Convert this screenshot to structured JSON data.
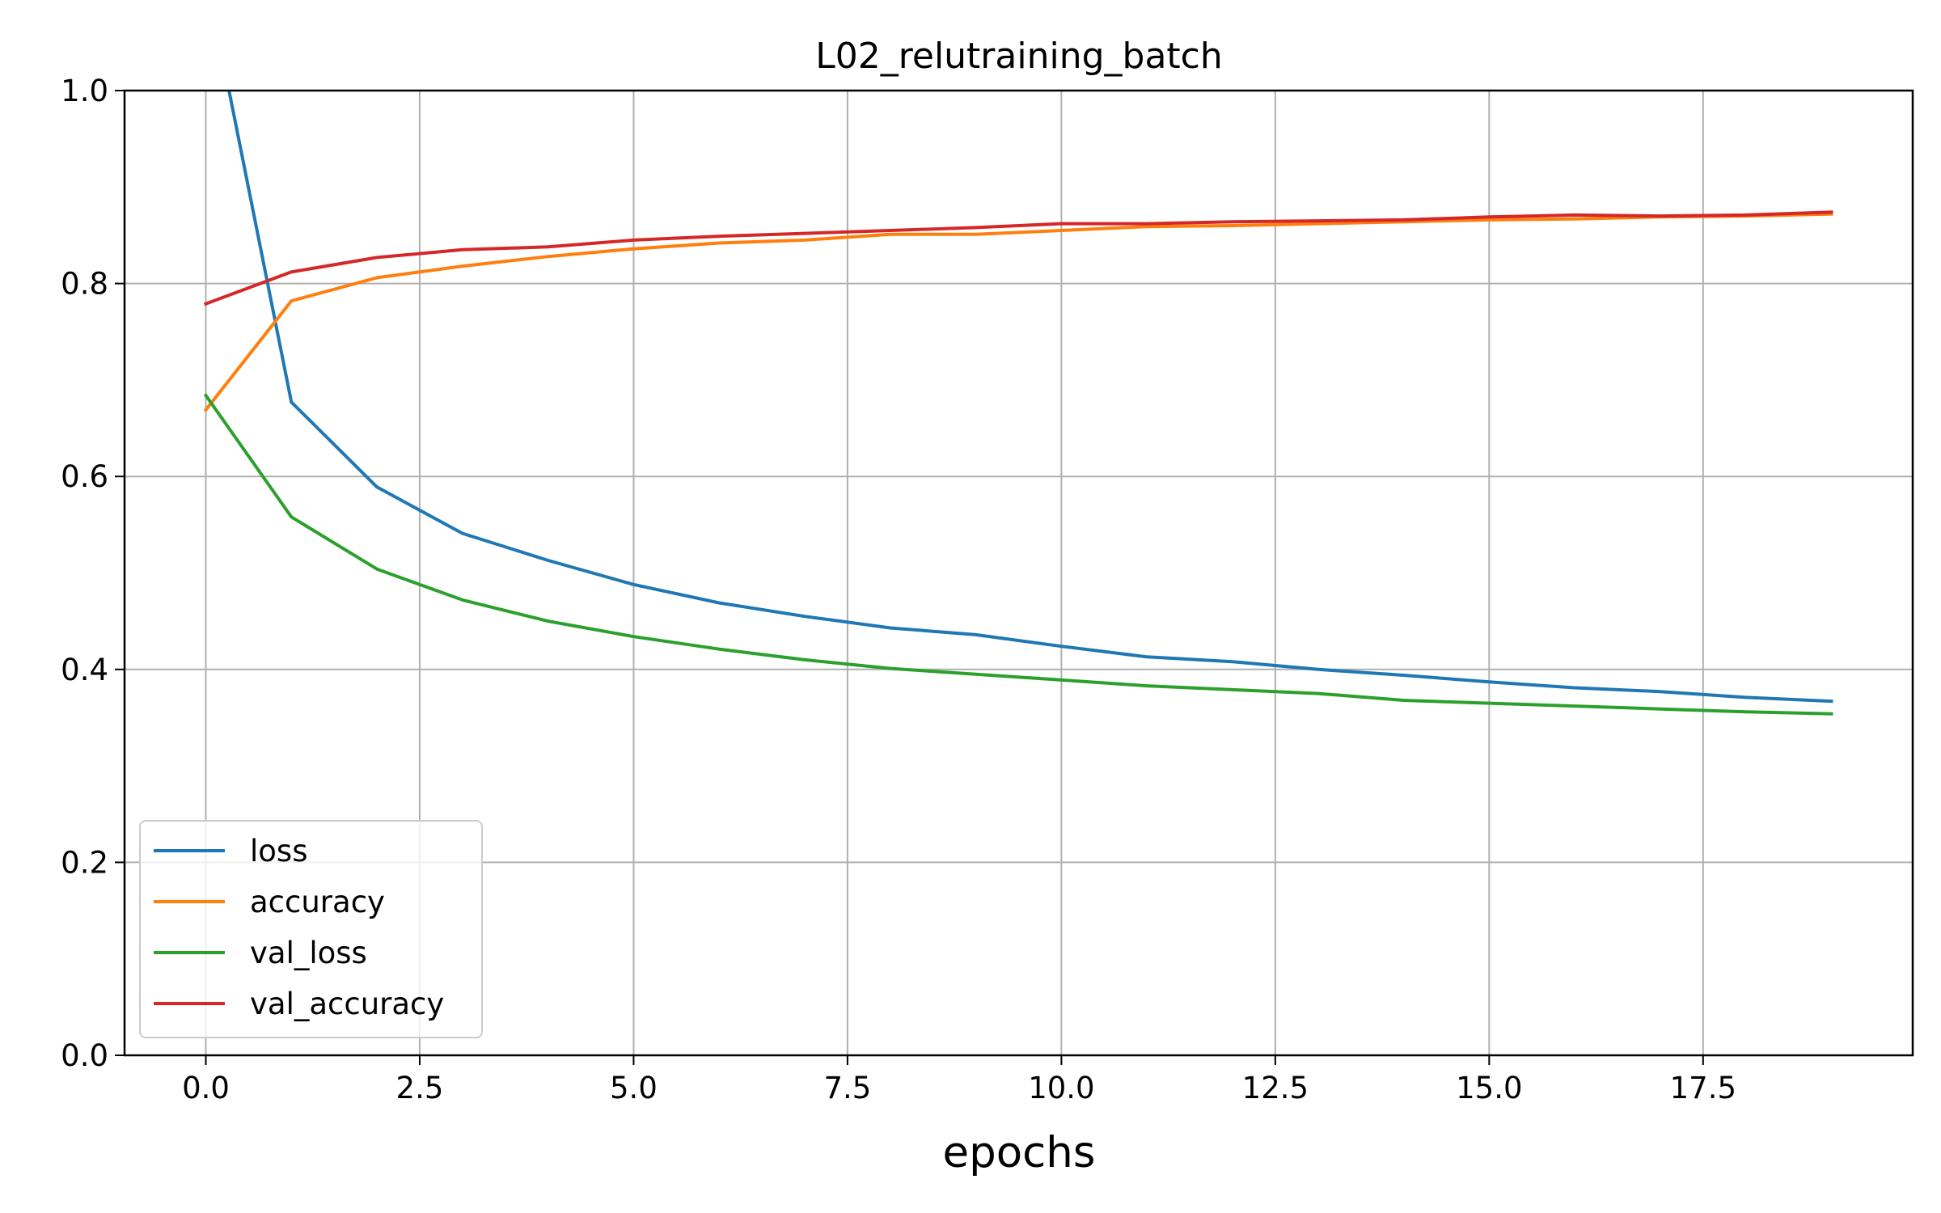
{
  "chart_data": {
    "type": "line",
    "title": "L02_relutraining_batch",
    "xlabel": "epochs",
    "ylabel": "",
    "xlim": [
      -0.95,
      19.95
    ],
    "ylim": [
      0.0,
      1.0
    ],
    "grid": true,
    "legend_position": "lower-left",
    "x_ticks": [
      0.0,
      2.5,
      5.0,
      7.5,
      10.0,
      12.5,
      15.0,
      17.5
    ],
    "x_tick_labels": [
      "0.0",
      "2.5",
      "5.0",
      "7.5",
      "10.0",
      "12.5",
      "15.0",
      "17.5"
    ],
    "y_ticks": [
      0.0,
      0.2,
      0.4,
      0.6,
      0.8,
      1.0
    ],
    "y_tick_labels": [
      "0.0",
      "0.2",
      "0.4",
      "0.6",
      "0.8",
      "1.0"
    ],
    "x": [
      0,
      1,
      2,
      3,
      4,
      5,
      6,
      7,
      8,
      9,
      10,
      11,
      12,
      13,
      14,
      15,
      16,
      17,
      18,
      19
    ],
    "series": [
      {
        "name": "loss",
        "color": "#1f77b4",
        "values": [
          1.12,
          0.677,
          0.589,
          0.541,
          0.513,
          0.488,
          0.469,
          0.455,
          0.443,
          0.436,
          0.424,
          0.413,
          0.408,
          0.4,
          0.394,
          0.387,
          0.381,
          0.377,
          0.371,
          0.367
        ]
      },
      {
        "name": "accuracy",
        "color": "#ff7f0e",
        "values": [
          0.669,
          0.782,
          0.806,
          0.818,
          0.828,
          0.836,
          0.842,
          0.845,
          0.851,
          0.851,
          0.855,
          0.859,
          0.86,
          0.862,
          0.864,
          0.866,
          0.867,
          0.869,
          0.87,
          0.872
        ]
      },
      {
        "name": "val_loss",
        "color": "#2ca02c",
        "values": [
          0.684,
          0.558,
          0.504,
          0.472,
          0.45,
          0.434,
          0.421,
          0.41,
          0.401,
          0.395,
          0.389,
          0.383,
          0.379,
          0.375,
          0.368,
          0.365,
          0.362,
          0.359,
          0.356,
          0.354
        ]
      },
      {
        "name": "val_accuracy",
        "color": "#d62728",
        "values": [
          0.779,
          0.812,
          0.827,
          0.835,
          0.838,
          0.845,
          0.849,
          0.852,
          0.855,
          0.858,
          0.862,
          0.862,
          0.864,
          0.865,
          0.866,
          0.869,
          0.871,
          0.87,
          0.871,
          0.874
        ]
      }
    ]
  }
}
